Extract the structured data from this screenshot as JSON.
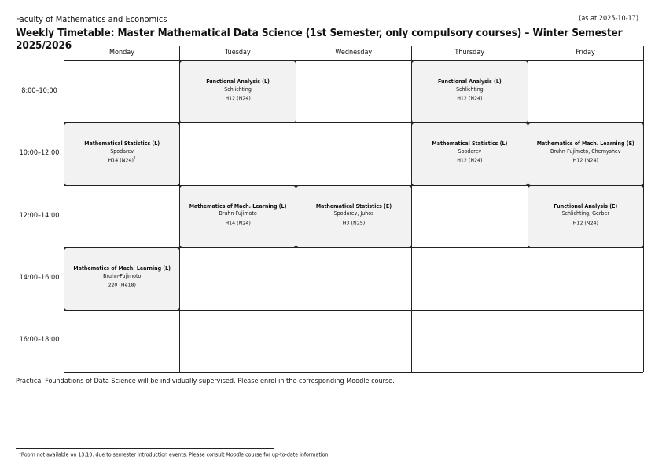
{
  "header": {
    "faculty": "Faculty of Mathematics and Economics",
    "as_at": "(as at 2025-10-17)",
    "title": "Weekly Timetable: Master Mathematical Data Science (1st Semester, only compulsory courses) – Winter Semester 2025/2026"
  },
  "days": [
    "Monday",
    "Tuesday",
    "Wednesday",
    "Thursday",
    "Friday"
  ],
  "times": [
    "8:00–10:00",
    "10:00–12:00",
    "12:00–14:00",
    "14:00–16:00",
    "16:00–18:00"
  ],
  "events": [
    {
      "day": 1,
      "slot": 0,
      "title": "Functional Analysis (L)",
      "lecturer": "Schlichting",
      "room": "H12 (N24)",
      "footnote": ""
    },
    {
      "day": 3,
      "slot": 0,
      "title": "Functional Analysis (L)",
      "lecturer": "Schlichting",
      "room": "H12 (N24)",
      "footnote": ""
    },
    {
      "day": 0,
      "slot": 1,
      "title": "Mathematical Statistics (L)",
      "lecturer": "Spodarev",
      "room": "H14 (N24)",
      "footnote": "1"
    },
    {
      "day": 3,
      "slot": 1,
      "title": "Mathematical Statistics (L)",
      "lecturer": "Spodarev",
      "room": "H12 (N24)",
      "footnote": ""
    },
    {
      "day": 4,
      "slot": 1,
      "title": "Mathematics of Mach. Learning (E)",
      "lecturer": "Bruhn-Fujimoto, Chernyshev",
      "room": "H12 (N24)",
      "footnote": ""
    },
    {
      "day": 1,
      "slot": 2,
      "title": "Mathematics of Mach. Learning (L)",
      "lecturer": "Bruhn-Fujimoto",
      "room": "H14 (N24)",
      "footnote": ""
    },
    {
      "day": 2,
      "slot": 2,
      "title": "Mathematical Statistics (E)",
      "lecturer": "Spodarev, Juhos",
      "room": "H3 (N25)",
      "footnote": ""
    },
    {
      "day": 4,
      "slot": 2,
      "title": "Functional Analysis (E)",
      "lecturer": "Schlichting, Gerber",
      "room": "H12 (N24)",
      "footnote": ""
    },
    {
      "day": 0,
      "slot": 3,
      "title": "Mathematics of Mach. Learning (L)",
      "lecturer": "Bruhn-Fujimoto",
      "room": "220 (He18)",
      "footnote": ""
    }
  ],
  "note": "Practical Foundations of Data Science will be individually supervised. Please enrol in the corresponding Moodle course.",
  "footnote": {
    "mark": "1",
    "before": "Room not available on 13.10. due to semester introduction events. Please consult ",
    "italic": "Moodle",
    "after": " course for up-to-date information."
  }
}
